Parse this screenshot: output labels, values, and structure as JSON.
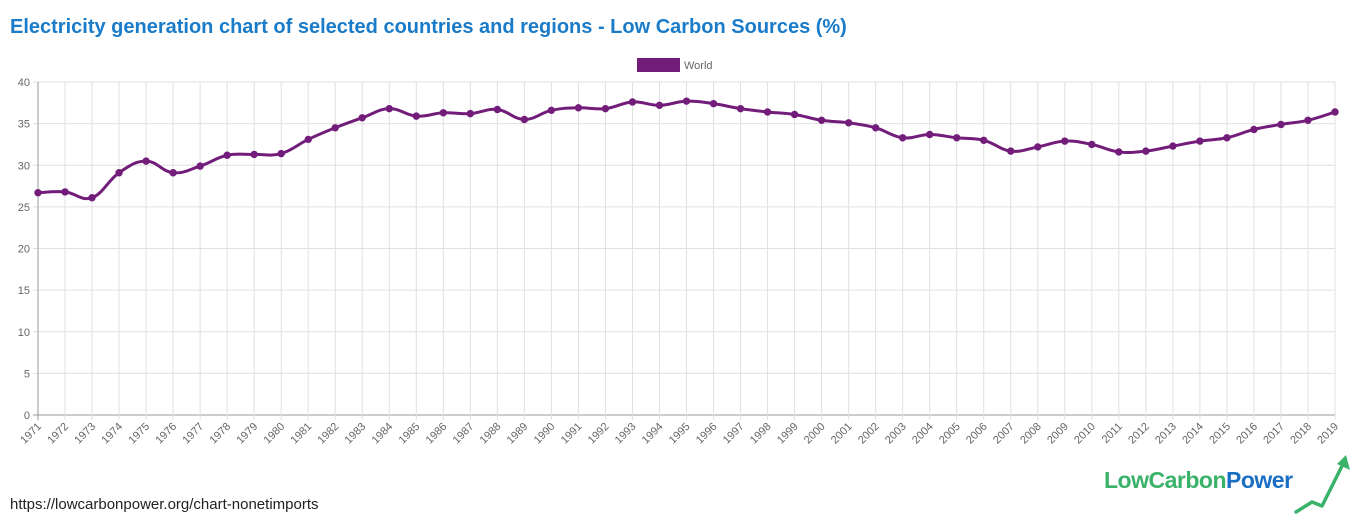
{
  "title": "Electricity generation chart of selected countries and regions - Low Carbon Sources (%)",
  "footer_url": "https://lowcarbonpower.org/chart-nonetimports",
  "logo": {
    "part1": "LowCarbon",
    "part2": "Power"
  },
  "colors": {
    "title": "#1a7bc9",
    "series": "#731d7b",
    "grid": "#e0e0e0",
    "logo_green": "#3bb26a",
    "logo_blue": "#1a6fc4"
  },
  "chart_data": {
    "type": "line",
    "title": "Electricity generation chart of selected countries and regions - Low Carbon Sources (%)",
    "xlabel": "",
    "ylabel": "",
    "ylim": [
      0,
      40
    ],
    "yticks": [
      0,
      5,
      10,
      15,
      20,
      25,
      30,
      35,
      40
    ],
    "grid": true,
    "legend_position": "top-center",
    "categories": [
      "1971",
      "1972",
      "1973",
      "1974",
      "1975",
      "1976",
      "1977",
      "1978",
      "1979",
      "1980",
      "1981",
      "1982",
      "1983",
      "1984",
      "1985",
      "1986",
      "1987",
      "1988",
      "1989",
      "1990",
      "1991",
      "1992",
      "1993",
      "1994",
      "1995",
      "1996",
      "1997",
      "1998",
      "1999",
      "2000",
      "2001",
      "2002",
      "2003",
      "2004",
      "2005",
      "2006",
      "2007",
      "2008",
      "2009",
      "2010",
      "2011",
      "2012",
      "2013",
      "2014",
      "2015",
      "2016",
      "2017",
      "2018",
      "2019"
    ],
    "series": [
      {
        "name": "World",
        "color": "#731d7b",
        "values": [
          26.7,
          26.8,
          26.1,
          29.1,
          30.5,
          29.1,
          29.9,
          31.2,
          31.3,
          31.4,
          33.1,
          34.5,
          35.7,
          36.8,
          35.9,
          36.3,
          36.2,
          36.7,
          35.5,
          36.6,
          36.9,
          36.8,
          37.6,
          37.2,
          37.7,
          37.4,
          36.8,
          36.4,
          36.1,
          35.4,
          35.1,
          34.5,
          33.3,
          33.7,
          33.3,
          33.0,
          31.7,
          32.2,
          32.9,
          32.5,
          31.6,
          31.7,
          32.3,
          32.9,
          33.3,
          34.3,
          34.9,
          35.4,
          36.4
        ]
      }
    ]
  }
}
